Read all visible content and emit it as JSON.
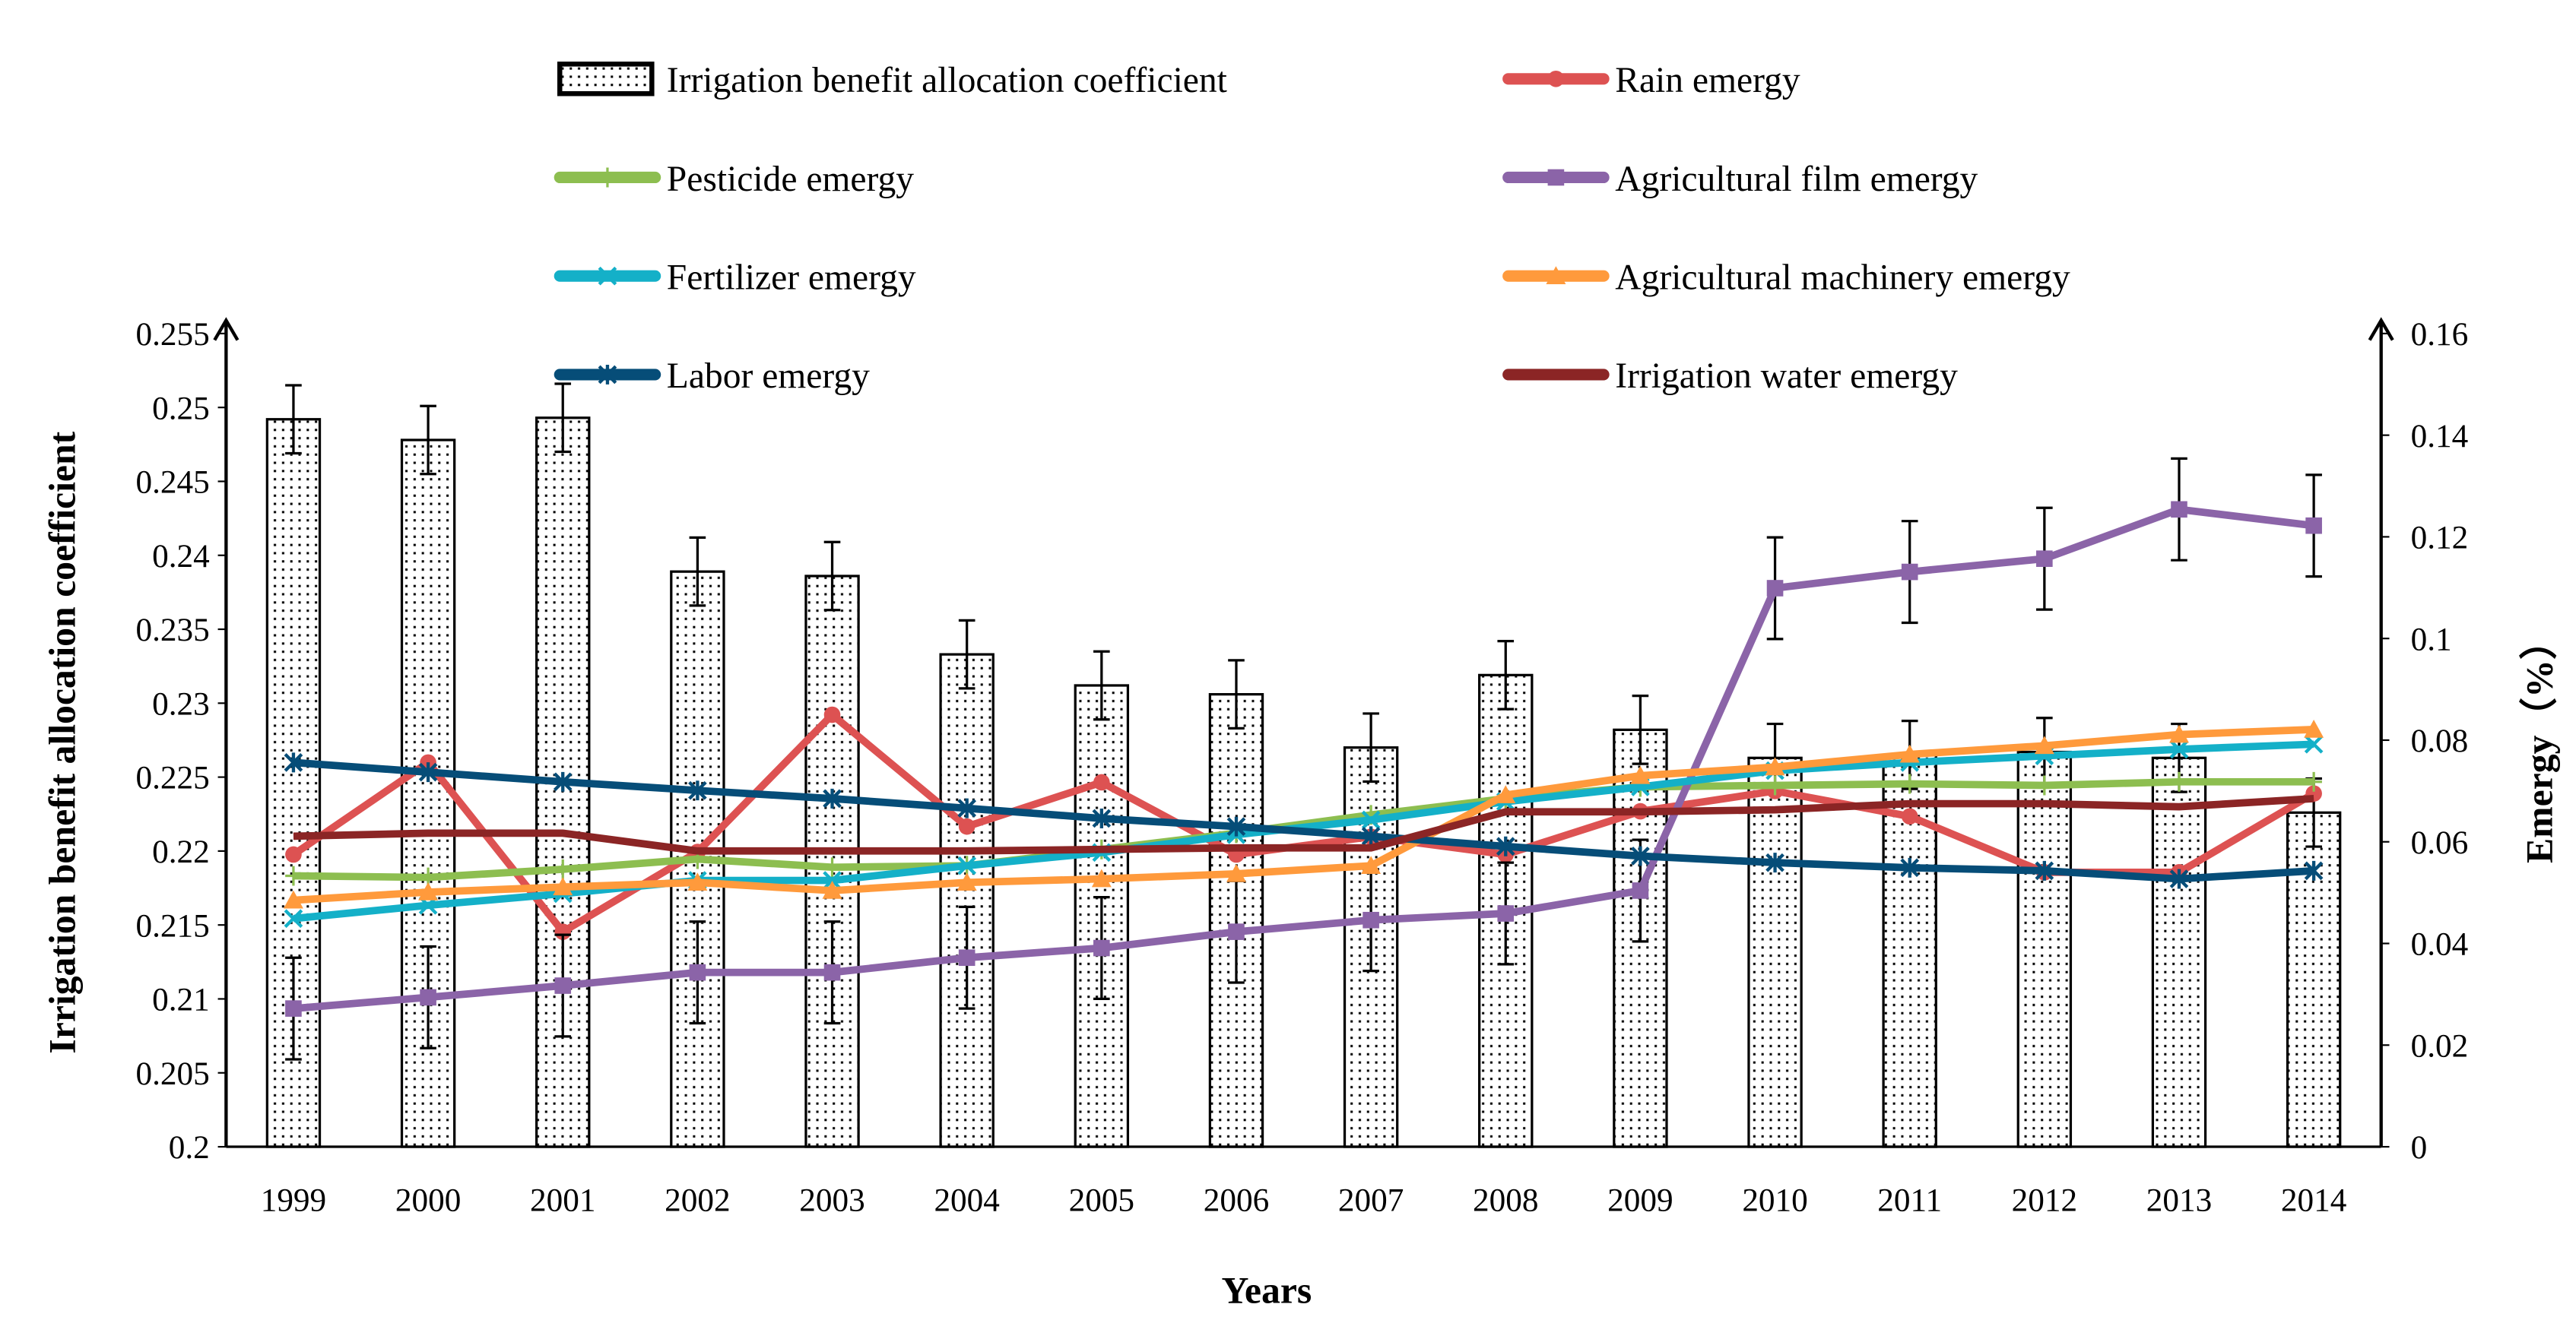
{
  "chart_data": {
    "type": "bar+line",
    "xlabel": "Years",
    "ylabel_left": "Irrigation benefit allocation coefficient",
    "ylabel_right": "Emergy（%）",
    "ylim_left": [
      0.2,
      0.255
    ],
    "yticks_left": [
      "0.2",
      "0.205",
      "0.21",
      "0.215",
      "0.22",
      "0.225",
      "0.23",
      "0.235",
      "0.24",
      "0.245",
      "0.25",
      "0.255"
    ],
    "ylim_right": [
      0,
      0.16
    ],
    "yticks_right": [
      "0",
      "0.02",
      "0.04",
      "0.06",
      "0.08",
      "0.1",
      "0.12",
      "0.14",
      "0.16"
    ],
    "grid": false,
    "legend_placement": "top",
    "categories": [
      "1999",
      "2000",
      "2001",
      "2002",
      "2003",
      "2004",
      "2005",
      "2006",
      "2007",
      "2008",
      "2009",
      "2010",
      "2011",
      "2012",
      "2013",
      "2014"
    ],
    "bars": {
      "name": "Irrigation benefit allocation coefficient",
      "axis": "left",
      "values": [
        0.2492,
        0.2478,
        0.2493,
        0.2389,
        0.2386,
        0.2333,
        0.2312,
        0.2306,
        0.227,
        0.2319,
        0.2282,
        0.2263,
        0.2265,
        0.2267,
        0.2263,
        0.2226
      ],
      "error": 0.0023
    },
    "series": [
      {
        "name": "Rain emergy",
        "axis": "right",
        "color": "#DD5252",
        "marker": "circle",
        "values": [
          0.0575,
          0.0756,
          0.0423,
          0.058,
          0.085,
          0.063,
          0.0717,
          0.0575,
          0.061,
          0.0575,
          0.066,
          0.07,
          0.065,
          0.054,
          0.054,
          0.0695
        ]
      },
      {
        "name": "Pesticide emergy",
        "axis": "right",
        "color": "#8DBE50",
        "marker": "plus",
        "values": [
          0.0533,
          0.053,
          0.0546,
          0.0566,
          0.055,
          0.0553,
          0.0585,
          0.0617,
          0.0653,
          0.0685,
          0.0708,
          0.0711,
          0.0714,
          0.0711,
          0.0718,
          0.0718
        ]
      },
      {
        "name": "Agricultural film emergy",
        "axis": "right",
        "color": "#8B64A8",
        "marker": "square",
        "error": 0.01,
        "values": [
          0.0272,
          0.0294,
          0.0317,
          0.0343,
          0.0343,
          0.0372,
          0.0391,
          0.0423,
          0.0446,
          0.0459,
          0.0504,
          0.1099,
          0.1131,
          0.1157,
          0.1254,
          0.1222
        ]
      },
      {
        "name": "Fertilizer emergy",
        "axis": "right",
        "color": "#14B0C8",
        "marker": "x",
        "values": [
          0.0449,
          0.0475,
          0.0498,
          0.0524,
          0.0524,
          0.0553,
          0.0579,
          0.0614,
          0.0643,
          0.0679,
          0.0708,
          0.074,
          0.0756,
          0.0769,
          0.0782,
          0.0792
        ]
      },
      {
        "name": "Agricultural machinery emergy",
        "axis": "right",
        "color": "#FF9A3C",
        "marker": "triangle",
        "values": [
          0.0485,
          0.0501,
          0.0511,
          0.052,
          0.0504,
          0.052,
          0.0527,
          0.0537,
          0.0553,
          0.0692,
          0.073,
          0.0747,
          0.0772,
          0.0789,
          0.0811,
          0.0821
        ]
      },
      {
        "name": "Labor emergy",
        "axis": "right",
        "color": "#064D78",
        "marker": "star",
        "values": [
          0.0756,
          0.0737,
          0.0718,
          0.0701,
          0.0685,
          0.0666,
          0.0646,
          0.063,
          0.0611,
          0.0591,
          0.0572,
          0.0559,
          0.0549,
          0.0543,
          0.0527,
          0.0543
        ]
      },
      {
        "name": "Irrigation water emergy",
        "axis": "right",
        "color": "#8B2525",
        "marker": "none",
        "values": [
          0.0611,
          0.0617,
          0.0617,
          0.0582,
          0.0582,
          0.0582,
          0.0585,
          0.0588,
          0.0588,
          0.0659,
          0.0659,
          0.0663,
          0.0675,
          0.0675,
          0.0669,
          0.0685
        ]
      }
    ]
  }
}
